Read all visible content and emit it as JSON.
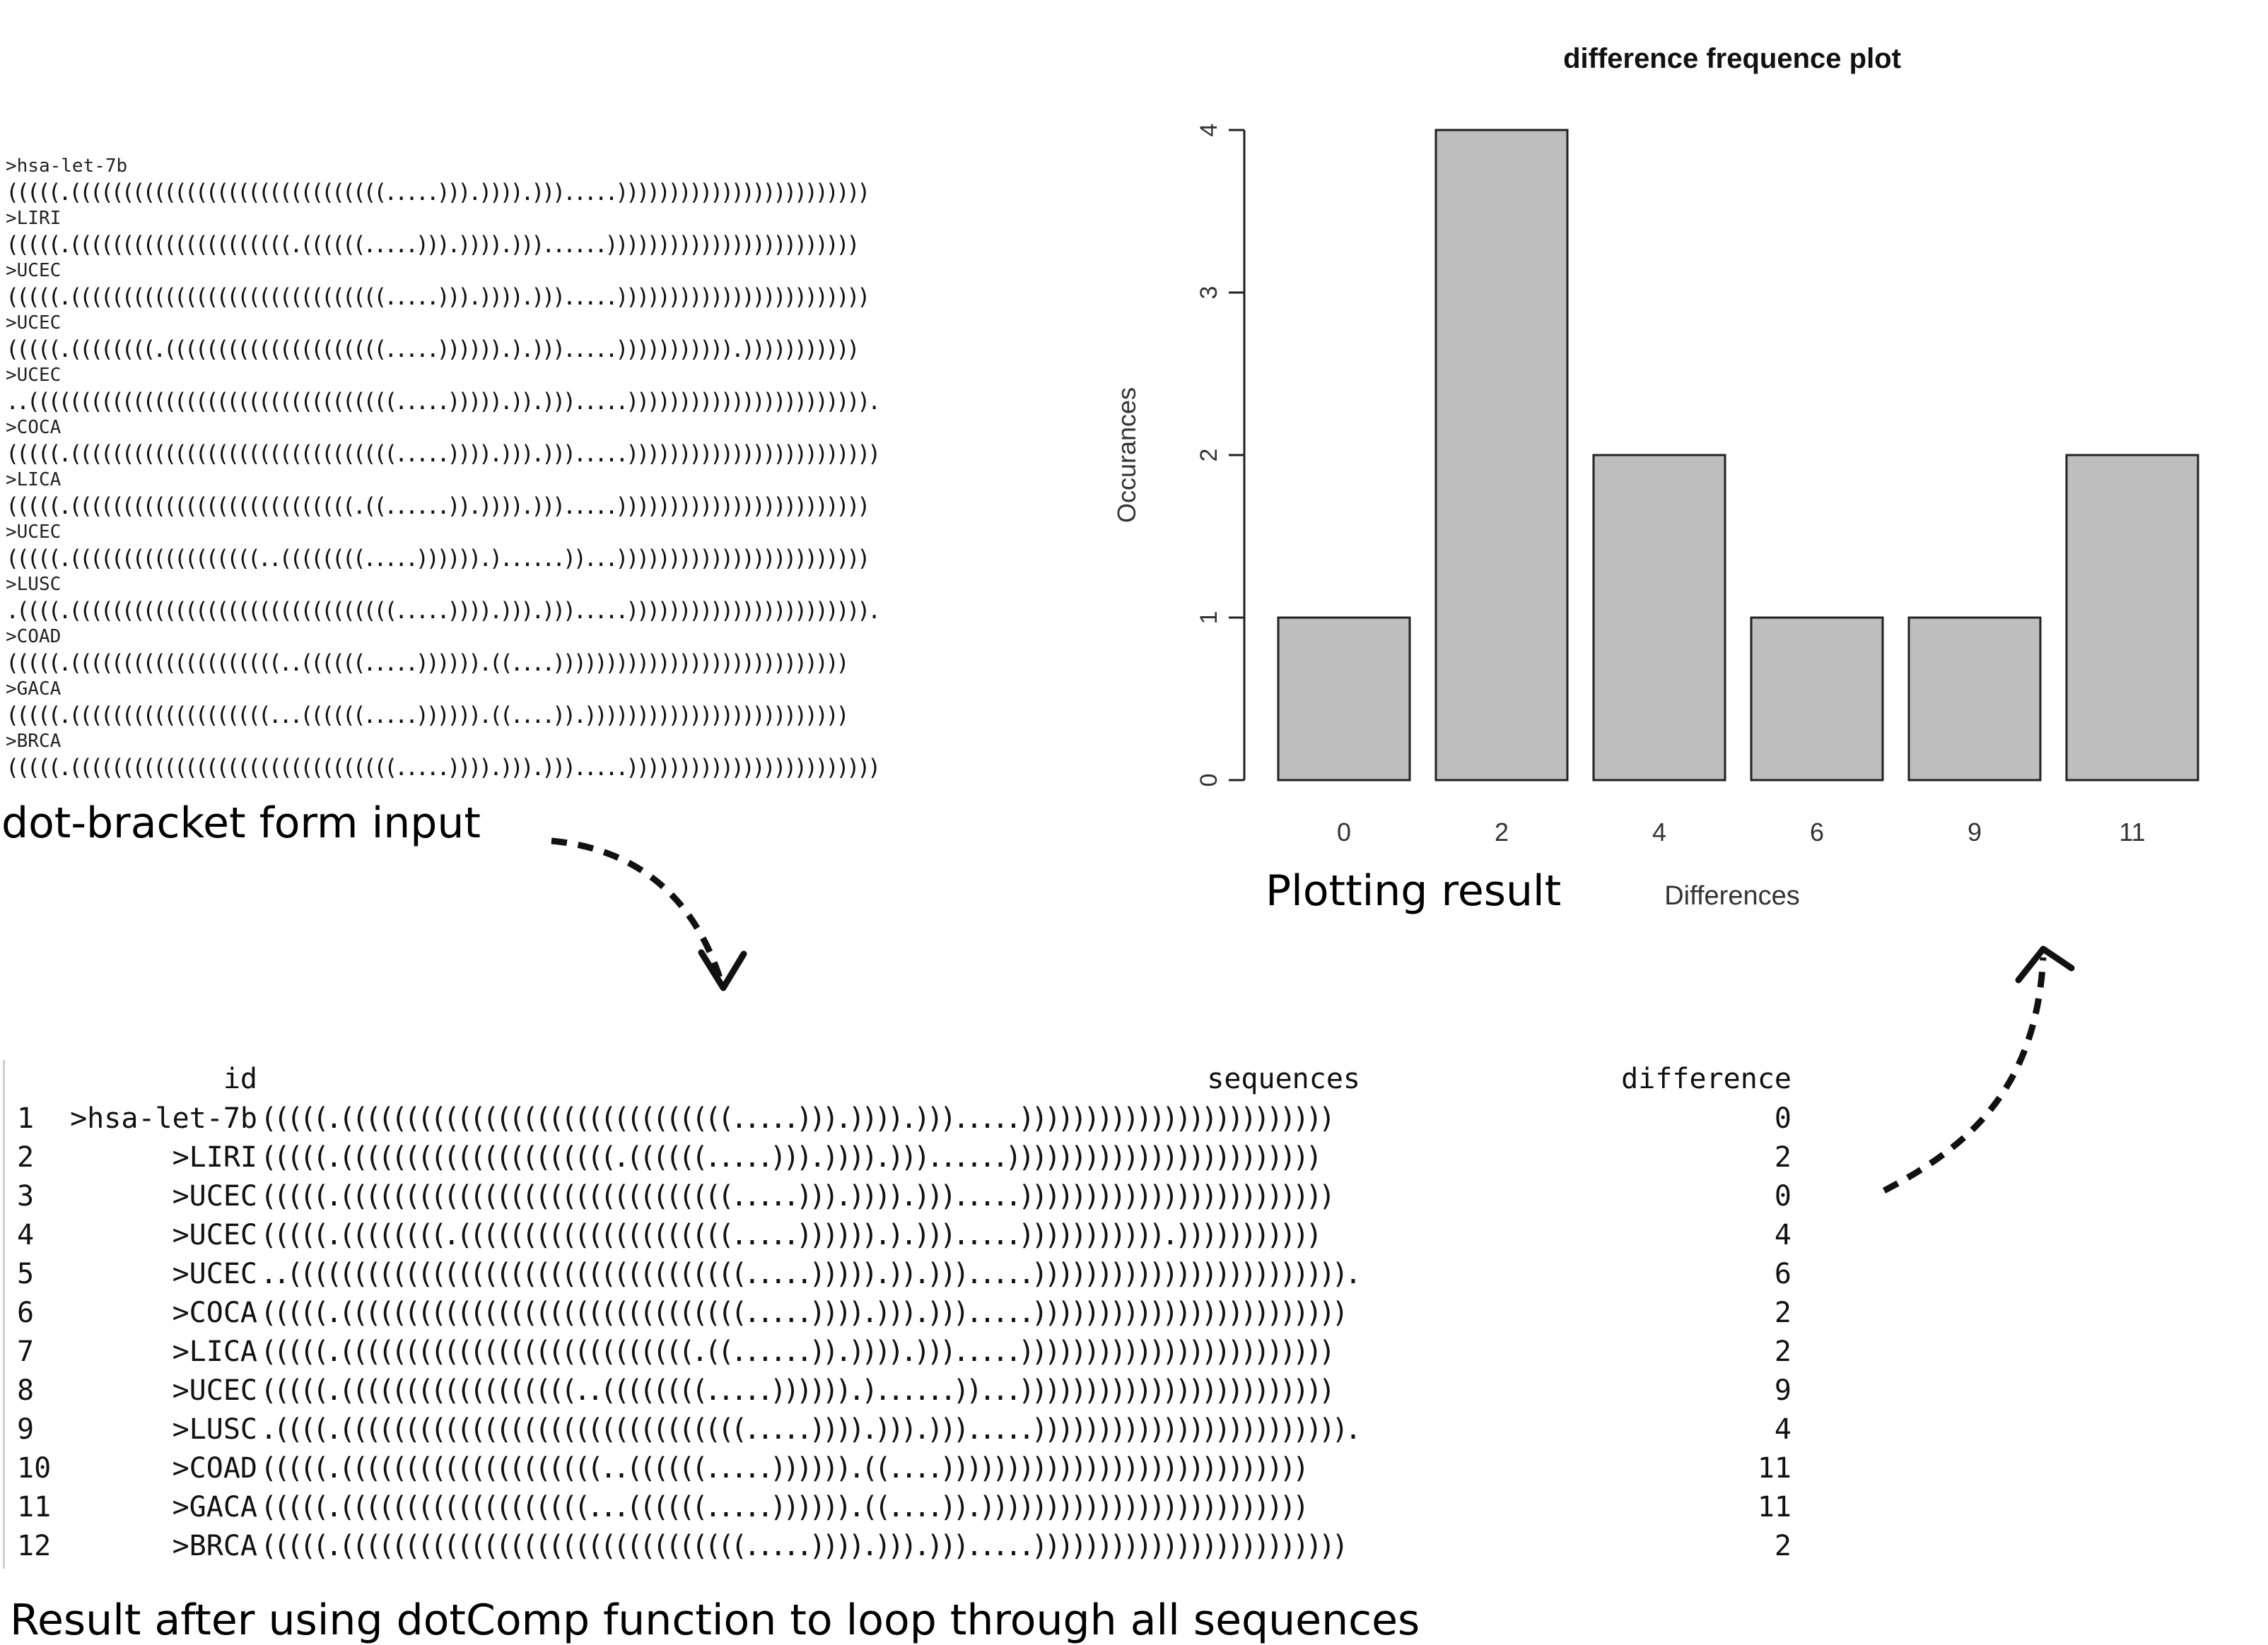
{
  "input_block": {
    "records": [
      {
        "header": ">hsa-let-7b",
        "structure": "(((((.((((((((((((((((((((((((((((((.....))).)))).))).....))))))))))))))))))))))))"
      },
      {
        "header": ">LIRI",
        "structure": "(((((.(((((((((((((((((((((.((((((.....))).)))).)))......))))))))))))))))))))))))"
      },
      {
        "header": ">UCEC",
        "structure": "(((((.((((((((((((((((((((((((((((((.....))).)))).))).....))))))))))))))))))))))))"
      },
      {
        "header": ">UCEC",
        "structure": "(((((.((((((((.(((((((((((((((((((((.....)))))).).))).....))))))))))).)))))))))))"
      },
      {
        "header": ">UCEC",
        "structure": "..(((((((((((((((((((((((((((((((((((.....))))).)).))).....)))))))))))))))))))))))."
      },
      {
        "header": ">COCA",
        "structure": "(((((.(((((((((((((((((((((((((((((((.....)))).))).))).....))))))))))))))))))))))))"
      },
      {
        "header": ">LICA",
        "structure": "(((((.(((((((((((((((((((((((((((.((......)).)))).))).....))))))))))))))))))))))))"
      },
      {
        "header": ">UCEC",
        "structure": "(((((.((((((((((((((((((..((((((((.....)))))).)......))...))))))))))))))))))))))))"
      },
      {
        "header": ">LUSC",
        "structure": ".((((.(((((((((((((((((((((((((((((((.....)))).))).))).....)))))))))))))))))))))))."
      },
      {
        "header": ">COAD",
        "structure": "(((((.((((((((((((((((((((..((((((.....)))))).((....))))))))))))))))))))))))))))"
      },
      {
        "header": ">GACA",
        "structure": "(((((.(((((((((((((((((((...((((((.....)))))).((....)).)))))))))))))))))))))))))"
      },
      {
        "header": ">BRCA",
        "structure": "(((((.(((((((((((((((((((((((((((((((.....)))).))).))).....))))))))))))))))))))))))"
      }
    ]
  },
  "captions": {
    "input": "dot-bracket form input",
    "plot": "Plotting result",
    "result": "Result after using dotComp function to loop through all sequences"
  },
  "chart_data": {
    "type": "bar",
    "title": "difference frequence plot",
    "xlabel": "Differences",
    "ylabel": "Occurances",
    "categories": [
      "0",
      "2",
      "4",
      "6",
      "9",
      "11"
    ],
    "values": [
      1,
      4,
      2,
      1,
      1,
      2
    ],
    "ylim": [
      0,
      4
    ],
    "yticks": [
      "0",
      "1",
      "2",
      "3",
      "4"
    ],
    "bar_color": "#bebebe",
    "grid": false
  },
  "result_table": {
    "columns": [
      "id",
      "sequences",
      "difference"
    ],
    "rows": [
      {
        "idx": "1",
        "id": ">hsa-let-7b",
        "sequence": "(((((.((((((((((((((((((((((((((((((.....))).)))).))).....))))))))))))))))))))))))",
        "difference": "0"
      },
      {
        "idx": "2",
        "id": ">LIRI",
        "sequence": "(((((.(((((((((((((((((((((.((((((.....))).)))).)))......))))))))))))))))))))))))",
        "difference": "2"
      },
      {
        "idx": "3",
        "id": ">UCEC",
        "sequence": "(((((.((((((((((((((((((((((((((((((.....))).)))).))).....))))))))))))))))))))))))",
        "difference": "0"
      },
      {
        "idx": "4",
        "id": ">UCEC",
        "sequence": "(((((.((((((((.(((((((((((((((((((((.....)))))).).))).....))))))))))).)))))))))))",
        "difference": "4"
      },
      {
        "idx": "5",
        "id": ">UCEC",
        "sequence": "..(((((((((((((((((((((((((((((((((((.....))))).)).))).....)))))))))))))))))))))))).",
        "difference": "6"
      },
      {
        "idx": "6",
        "id": ">COCA",
        "sequence": "(((((.(((((((((((((((((((((((((((((((.....)))).))).))).....))))))))))))))))))))))))",
        "difference": "2"
      },
      {
        "idx": "7",
        "id": ">LICA",
        "sequence": "(((((.(((((((((((((((((((((((((((.((......)).)))).))).....))))))))))))))))))))))))",
        "difference": "2"
      },
      {
        "idx": "8",
        "id": ">UCEC",
        "sequence": "(((((.((((((((((((((((((..((((((((.....)))))).)......))...))))))))))))))))))))))))",
        "difference": "9"
      },
      {
        "idx": "9",
        "id": ">LUSC",
        "sequence": ".((((.(((((((((((((((((((((((((((((((.....)))).))).))).....)))))))))))))))))))))))).",
        "difference": "4"
      },
      {
        "idx": "10",
        "id": ">COAD",
        "sequence": "(((((.((((((((((((((((((((..((((((.....)))))).((....))))))))))))))))))))))))))))",
        "difference": "11"
      },
      {
        "idx": "11",
        "id": ">GACA",
        "sequence": "(((((.(((((((((((((((((((...((((((.....)))))).((....)).)))))))))))))))))))))))))",
        "difference": "11"
      },
      {
        "idx": "12",
        "id": ">BRCA",
        "sequence": "(((((.(((((((((((((((((((((((((((((((.....)))).))).))).....))))))))))))))))))))))))",
        "difference": "2"
      }
    ]
  }
}
